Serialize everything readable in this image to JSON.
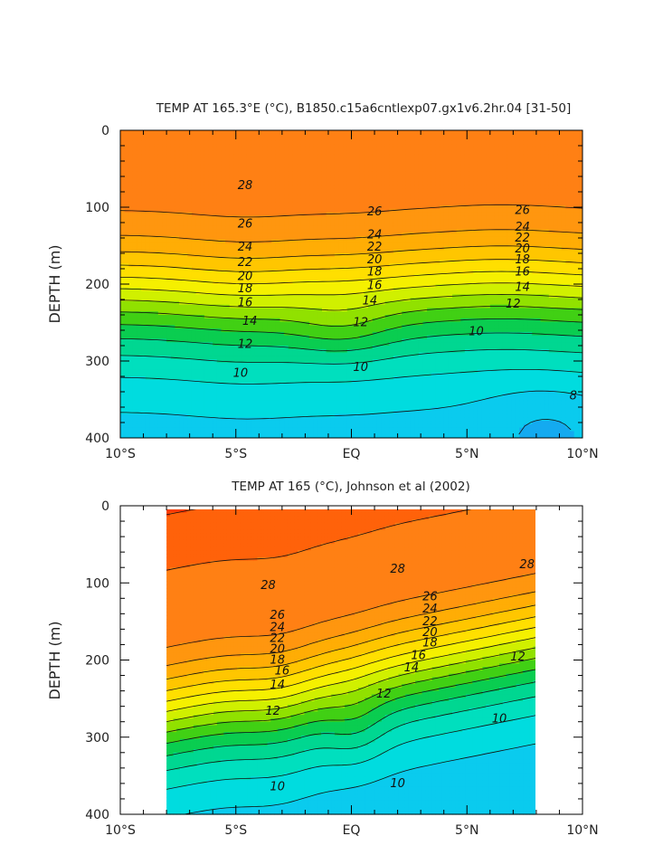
{
  "chart_data": [
    {
      "type": "heatmap",
      "title": "TEMP AT 165.3°E (°C), B1850.c15a6cntlexp07.gx1v6.2hr.04 [31-50]",
      "xlabel": "",
      "ylabel": "DEPTH (m)",
      "xlim": [
        -10,
        10
      ],
      "ylim": [
        400,
        0
      ],
      "x_ticks": [
        -10,
        -5,
        0,
        5,
        10
      ],
      "x_tick_labels": [
        "10°S",
        "5°S",
        "EQ",
        "5°N",
        "10°N"
      ],
      "y_ticks": [
        0,
        100,
        200,
        300,
        400
      ],
      "y_tick_labels": [
        "0",
        "100",
        "200",
        "300",
        "400"
      ],
      "data_extent": [
        -10,
        10
      ],
      "contour_interval": 1,
      "contour_labels": [
        {
          "text": "28",
          "lat": -4.6,
          "depth": 72
        },
        {
          "text": "26",
          "lat": -4.6,
          "depth": 122
        },
        {
          "text": "24",
          "lat": -4.6,
          "depth": 152
        },
        {
          "text": "22",
          "lat": -4.6,
          "depth": 172
        },
        {
          "text": "20",
          "lat": -4.6,
          "depth": 190
        },
        {
          "text": "18",
          "lat": -4.6,
          "depth": 206
        },
        {
          "text": "16",
          "lat": -4.6,
          "depth": 224
        },
        {
          "text": "14",
          "lat": -4.4,
          "depth": 248
        },
        {
          "text": "12",
          "lat": -4.6,
          "depth": 278
        },
        {
          "text": "10",
          "lat": -4.8,
          "depth": 316
        },
        {
          "text": "26",
          "lat": 1.0,
          "depth": 106
        },
        {
          "text": "24",
          "lat": 1.0,
          "depth": 136
        },
        {
          "text": "22",
          "lat": 1.0,
          "depth": 152
        },
        {
          "text": "20",
          "lat": 1.0,
          "depth": 168
        },
        {
          "text": "18",
          "lat": 1.0,
          "depth": 184
        },
        {
          "text": "16",
          "lat": 1.0,
          "depth": 202
        },
        {
          "text": "14",
          "lat": 0.8,
          "depth": 222
        },
        {
          "text": "12",
          "lat": 0.4,
          "depth": 250
        },
        {
          "text": "10",
          "lat": 0.4,
          "depth": 308
        },
        {
          "text": "26",
          "lat": 7.4,
          "depth": 104
        },
        {
          "text": "24",
          "lat": 7.4,
          "depth": 126
        },
        {
          "text": "22",
          "lat": 7.4,
          "depth": 140
        },
        {
          "text": "20",
          "lat": 7.4,
          "depth": 154
        },
        {
          "text": "18",
          "lat": 7.4,
          "depth": 168
        },
        {
          "text": "16",
          "lat": 7.4,
          "depth": 184
        },
        {
          "text": "14",
          "lat": 7.4,
          "depth": 204
        },
        {
          "text": "12",
          "lat": 7.0,
          "depth": 226
        },
        {
          "text": "10",
          "lat": 5.4,
          "depth": 262
        },
        {
          "text": "8",
          "lat": 9.6,
          "depth": 345
        }
      ]
    },
    {
      "type": "heatmap",
      "title": "TEMP AT 165 (°C), Johnson et al (2002)",
      "xlabel": "",
      "ylabel": "DEPTH (m)",
      "xlim": [
        -10,
        10
      ],
      "ylim": [
        400,
        0
      ],
      "x_ticks": [
        -10,
        -5,
        0,
        5,
        10
      ],
      "x_tick_labels": [
        "10°S",
        "5°S",
        "EQ",
        "5°N",
        "10°N"
      ],
      "y_ticks": [
        0,
        100,
        200,
        300,
        400
      ],
      "y_tick_labels": [
        "0",
        "100",
        "200",
        "300",
        "400"
      ],
      "data_extent": [
        -8,
        8
      ],
      "contour_interval": 1,
      "contour_labels": [
        {
          "text": "28",
          "lat": -3.6,
          "depth": 103
        },
        {
          "text": "26",
          "lat": -3.2,
          "depth": 142
        },
        {
          "text": "24",
          "lat": -3.2,
          "depth": 158
        },
        {
          "text": "22",
          "lat": -3.2,
          "depth": 172
        },
        {
          "text": "20",
          "lat": -3.2,
          "depth": 186
        },
        {
          "text": "18",
          "lat": -3.2,
          "depth": 200
        },
        {
          "text": "16",
          "lat": -3.0,
          "depth": 214
        },
        {
          "text": "14",
          "lat": -3.2,
          "depth": 232
        },
        {
          "text": "12",
          "lat": -3.4,
          "depth": 266
        },
        {
          "text": "10",
          "lat": -3.2,
          "depth": 364
        },
        {
          "text": "28",
          "lat": 2.0,
          "depth": 82
        },
        {
          "text": "26",
          "lat": 3.4,
          "depth": 118
        },
        {
          "text": "24",
          "lat": 3.4,
          "depth": 134
        },
        {
          "text": "22",
          "lat": 3.4,
          "depth": 150
        },
        {
          "text": "20",
          "lat": 3.4,
          "depth": 164
        },
        {
          "text": "18",
          "lat": 3.4,
          "depth": 178
        },
        {
          "text": "16",
          "lat": 2.9,
          "depth": 194
        },
        {
          "text": "14",
          "lat": 2.6,
          "depth": 210
        },
        {
          "text": "12",
          "lat": 1.4,
          "depth": 244
        },
        {
          "text": "10",
          "lat": 2.0,
          "depth": 360
        },
        {
          "text": "28",
          "lat": 7.6,
          "depth": 76
        },
        {
          "text": "12",
          "lat": 7.2,
          "depth": 196
        },
        {
          "text": "10",
          "lat": 6.4,
          "depth": 276
        }
      ]
    }
  ]
}
